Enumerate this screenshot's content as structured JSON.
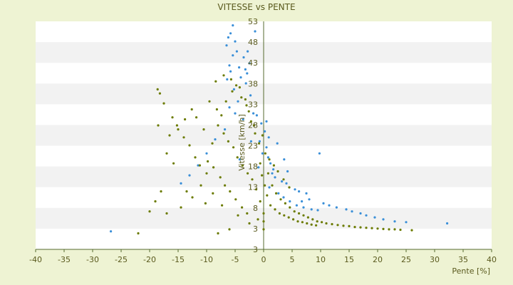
{
  "chart_data": {
    "type": "scatter",
    "title": "VITESSE vs PENTE",
    "xlabel": "Pente [%]",
    "ylabel": "Vitesse [km/h]",
    "xlim": [
      -40,
      40
    ],
    "ylim": [
      -2,
      55
    ],
    "x_ticks": [
      -40,
      -35,
      -30,
      -25,
      -20,
      -15,
      -10,
      -5,
      0,
      5,
      10,
      15,
      20,
      25,
      30,
      35,
      40
    ],
    "y_tick_values": [
      3,
      8,
      13,
      18,
      23,
      28,
      33,
      38,
      43,
      48,
      53
    ],
    "bottom_label": "3",
    "grid": "horizontal bands",
    "colors": {
      "background": "#eef3d3",
      "plot_area": "#ffffff",
      "band": "#f2f2f2",
      "axis": "#556b2f",
      "series_blue": "#3a8fd8",
      "series_olive": "#6b7b00"
    },
    "series": [
      {
        "color": "#3a8fd8",
        "points": [
          [
            -5.4,
            54.0
          ],
          [
            -5.8,
            52.0
          ],
          [
            -6.2,
            51.0
          ],
          [
            -1.5,
            52.5
          ],
          [
            -5.0,
            50.0
          ],
          [
            -6.5,
            49.0
          ],
          [
            -4.7,
            47.5
          ],
          [
            -2.8,
            47.5
          ],
          [
            -5.4,
            46.5
          ],
          [
            -3.5,
            46.0
          ],
          [
            -2.5,
            44.5
          ],
          [
            -6.0,
            44.0
          ],
          [
            -4.3,
            43.5
          ],
          [
            -3.2,
            43.0
          ],
          [
            -5.8,
            42.5
          ],
          [
            -2.9,
            42.0
          ],
          [
            -4.0,
            41.0
          ],
          [
            -6.4,
            40.5
          ],
          [
            -3.1,
            39.5
          ],
          [
            -5.2,
            38.0
          ],
          [
            -2.3,
            36.5
          ],
          [
            -4.5,
            35.0
          ],
          [
            -6.0,
            33.5
          ],
          [
            -1.8,
            32.0
          ],
          [
            -0.4,
            29.5
          ],
          [
            0.2,
            27.5
          ],
          [
            -0.7,
            25.0
          ],
          [
            0.5,
            23.5
          ],
          [
            -0.2,
            22.0
          ],
          [
            0.8,
            21.0
          ],
          [
            1.2,
            19.5
          ],
          [
            -0.9,
            18.5
          ],
          [
            1.5,
            17.0
          ],
          [
            2.0,
            16.0
          ],
          [
            3.2,
            15.0
          ],
          [
            4.0,
            14.5
          ],
          [
            5.5,
            13.0
          ],
          [
            6.2,
            12.5
          ],
          [
            7.5,
            12.0
          ],
          [
            9.8,
            22.0
          ],
          [
            8.0,
            10.5
          ],
          [
            6.7,
            10.0
          ],
          [
            10.5,
            9.5
          ],
          [
            11.5,
            9.0
          ],
          [
            12.8,
            8.5
          ],
          [
            14.5,
            8.0
          ],
          [
            15.5,
            7.5
          ],
          [
            17.0,
            7.0
          ],
          [
            18.0,
            6.5
          ],
          [
            19.5,
            6.0
          ],
          [
            21.0,
            5.5
          ],
          [
            23.0,
            5.0
          ],
          [
            25.0,
            4.8
          ],
          [
            32.2,
            4.5
          ],
          [
            -26.8,
            2.5
          ],
          [
            1.0,
            13.5
          ],
          [
            2.6,
            12.0
          ],
          [
            3.5,
            11.0
          ],
          [
            4.6,
            10.0
          ],
          [
            5.8,
            9.0
          ],
          [
            7.0,
            8.5
          ],
          [
            8.4,
            8.0
          ],
          [
            9.5,
            7.8
          ],
          [
            0.5,
            30.0
          ],
          [
            -1.2,
            31.5
          ],
          [
            0.9,
            26.0
          ],
          [
            2.4,
            24.5
          ],
          [
            3.6,
            20.5
          ],
          [
            1.7,
            18.0
          ],
          [
            4.2,
            17.5
          ],
          [
            -4.2,
            20.5
          ],
          [
            -2.2,
            25.0
          ],
          [
            -3.6,
            30.5
          ],
          [
            -5.0,
            32.0
          ],
          [
            -6.8,
            28.0
          ],
          [
            -8.5,
            25.5
          ],
          [
            -10.0,
            22.0
          ],
          [
            -11.5,
            19.0
          ],
          [
            -13.0,
            16.5
          ],
          [
            -14.5,
            14.5
          ]
        ]
      },
      {
        "color": "#6b7b00",
        "points": [
          [
            -18.6,
            38.0
          ],
          [
            -18.2,
            37.0
          ],
          [
            -17.5,
            34.5
          ],
          [
            -16.0,
            31.0
          ],
          [
            -15.2,
            29.0
          ],
          [
            -14.0,
            26.0
          ],
          [
            -13.0,
            24.0
          ],
          [
            -12.0,
            21.0
          ],
          [
            -11.2,
            19.0
          ],
          [
            -10.0,
            17.0
          ],
          [
            -18.5,
            29.0
          ],
          [
            -16.5,
            26.5
          ],
          [
            -17.0,
            22.0
          ],
          [
            -15.8,
            19.5
          ],
          [
            -18.0,
            12.5
          ],
          [
            -19.0,
            10.0
          ],
          [
            -17.0,
            7.0
          ],
          [
            -14.5,
            8.5
          ],
          [
            -12.5,
            11.0
          ],
          [
            -8.0,
            29.0
          ],
          [
            -7.0,
            27.0
          ],
          [
            -6.2,
            25.0
          ],
          [
            -5.3,
            23.5
          ],
          [
            -4.6,
            21.0
          ],
          [
            -3.7,
            19.0
          ],
          [
            -2.8,
            17.0
          ],
          [
            -2.0,
            15.5
          ],
          [
            -1.3,
            13.0
          ],
          [
            -0.6,
            10.0
          ],
          [
            0.0,
            7.0
          ],
          [
            0.0,
            5.0
          ],
          [
            0.0,
            3.0
          ],
          [
            -1.0,
            5.5
          ],
          [
            -2.5,
            4.5
          ],
          [
            -4.5,
            6.5
          ],
          [
            -6.0,
            3.0
          ],
          [
            -8.0,
            2.0
          ],
          [
            -22.0,
            2.0
          ],
          [
            -9.5,
            35.0
          ],
          [
            -8.2,
            33.0
          ],
          [
            -7.4,
            31.5
          ],
          [
            -6.6,
            35.0
          ],
          [
            -5.5,
            37.5
          ],
          [
            -4.8,
            39.0
          ],
          [
            -3.9,
            36.0
          ],
          [
            -3.0,
            34.0
          ],
          [
            -2.2,
            30.0
          ],
          [
            -1.5,
            27.0
          ],
          [
            -0.8,
            24.5
          ],
          [
            0.3,
            22.0
          ],
          [
            1.0,
            20.5
          ],
          [
            1.8,
            19.0
          ],
          [
            2.5,
            17.5
          ],
          [
            3.5,
            15.5
          ],
          [
            4.5,
            13.5
          ],
          [
            0.8,
            17.0
          ],
          [
            1.5,
            14.0
          ],
          [
            2.2,
            12.0
          ],
          [
            3.0,
            10.5
          ],
          [
            3.8,
            9.5
          ],
          [
            4.6,
            8.5
          ],
          [
            5.4,
            7.5
          ],
          [
            6.2,
            7.0
          ],
          [
            7.0,
            6.5
          ],
          [
            7.8,
            6.0
          ],
          [
            8.6,
            5.5
          ],
          [
            9.4,
            5.0
          ],
          [
            10.2,
            4.8
          ],
          [
            11.0,
            4.5
          ],
          [
            12.0,
            4.3
          ],
          [
            13.0,
            4.1
          ],
          [
            14.0,
            3.9
          ],
          [
            15.0,
            3.8
          ],
          [
            16.0,
            3.6
          ],
          [
            17.0,
            3.5
          ],
          [
            18.0,
            3.4
          ],
          [
            19.0,
            3.3
          ],
          [
            20.0,
            3.2
          ],
          [
            21.0,
            3.1
          ],
          [
            22.0,
            3.0
          ],
          [
            23.0,
            3.0
          ],
          [
            24.0,
            2.9
          ],
          [
            26.0,
            2.8
          ],
          [
            -9.0,
            24.5
          ],
          [
            -10.5,
            28.0
          ],
          [
            -11.8,
            31.0
          ],
          [
            -12.6,
            33.0
          ],
          [
            -13.8,
            30.5
          ],
          [
            -15.0,
            28.0
          ],
          [
            -9.8,
            20.0
          ],
          [
            -8.8,
            18.5
          ],
          [
            -7.6,
            16.0
          ],
          [
            -6.8,
            14.0
          ],
          [
            -5.9,
            12.5
          ],
          [
            -4.9,
            10.5
          ],
          [
            -3.8,
            8.5
          ],
          [
            -2.9,
            7.0
          ],
          [
            -8.4,
            40.0
          ],
          [
            -7.0,
            41.5
          ],
          [
            -5.7,
            40.5
          ],
          [
            -4.2,
            38.5
          ],
          [
            -3.2,
            35.5
          ],
          [
            2.0,
            8.0
          ],
          [
            2.8,
            7.0
          ],
          [
            3.6,
            6.5
          ],
          [
            4.4,
            6.0
          ],
          [
            5.2,
            5.5
          ],
          [
            6.0,
            5.0
          ],
          [
            6.8,
            4.8
          ],
          [
            7.6,
            4.5
          ],
          [
            8.4,
            4.2
          ],
          [
            9.2,
            4.0
          ],
          [
            1.2,
            9.0
          ],
          [
            0.6,
            11.5
          ],
          [
            0.2,
            14.0
          ],
          [
            -0.3,
            16.5
          ],
          [
            -0.6,
            19.5
          ],
          [
            -0.2,
            26.5
          ],
          [
            -1.7,
            29.0
          ],
          [
            -2.6,
            32.5
          ],
          [
            -20.0,
            7.5
          ],
          [
            -13.5,
            12.5
          ],
          [
            -11.0,
            14.0
          ],
          [
            -10.2,
            9.5
          ],
          [
            -8.9,
            12.0
          ],
          [
            -7.3,
            9.0
          ]
        ]
      }
    ]
  }
}
